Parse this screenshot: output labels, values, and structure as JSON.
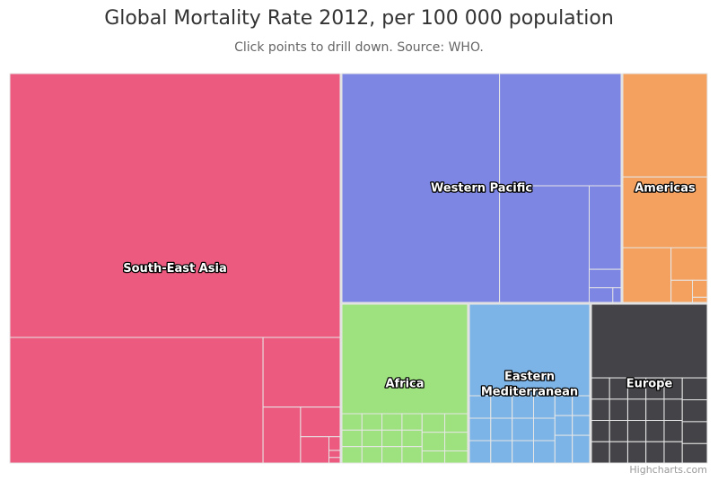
{
  "chart_data": {
    "type": "treemap",
    "title": "Global Mortality Rate 2012, per 100 000 population",
    "subtitle": "Click points to drill down. Source: WHO.",
    "credits": "Highcharts.com",
    "regions": [
      {
        "name": "South-East Asia",
        "label": "South-East Asia",
        "color": "#EC5B7F",
        "value": 10600
      },
      {
        "name": "Western Pacific",
        "label": "Western Pacific",
        "color": "#7E86E4",
        "value": 5640
      },
      {
        "name": "Americas",
        "label": "Americas",
        "color": "#F4A15F",
        "value": 1830
      },
      {
        "name": "Africa",
        "label": "Africa",
        "color": "#9DE27E",
        "value": 2620
      },
      {
        "name": "Eastern Mediterranean",
        "label": "Eastern\nMediterranean",
        "color": "#7CB4E7",
        "value": 2620
      },
      {
        "name": "Europe",
        "label": "Europe",
        "color": "#434348",
        "value": 2610
      }
    ]
  }
}
